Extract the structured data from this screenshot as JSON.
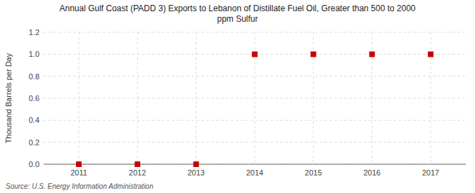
{
  "chart_data": {
    "type": "scatter",
    "title": "Annual Gulf Coast (PADD 3) Exports to Lebanon of Distillate Fuel Oil, Greater than 500 to 2000\nppm Sulfur",
    "y_label": "Thousand Barrels per Day",
    "source": "Source: U.S. Energy Information Administration",
    "x": [
      2011,
      2012,
      2013,
      2014,
      2015,
      2016,
      2017
    ],
    "values": [
      0,
      0,
      0,
      1,
      1,
      1,
      1
    ],
    "color": "#cc0000",
    "marker": "square",
    "xlim": [
      2010.4,
      2017.6
    ],
    "xticks": [
      2011,
      2012,
      2013,
      2014,
      2015,
      2016,
      2017
    ],
    "ylim": [
      0,
      1.2
    ],
    "yticks": [
      {
        "value": 0.0,
        "label": "0.0"
      },
      0.2,
      0.4,
      0.6,
      0.8,
      {
        "value": 1.0,
        "label": "1.0"
      },
      1.2
    ],
    "grid": true
  }
}
